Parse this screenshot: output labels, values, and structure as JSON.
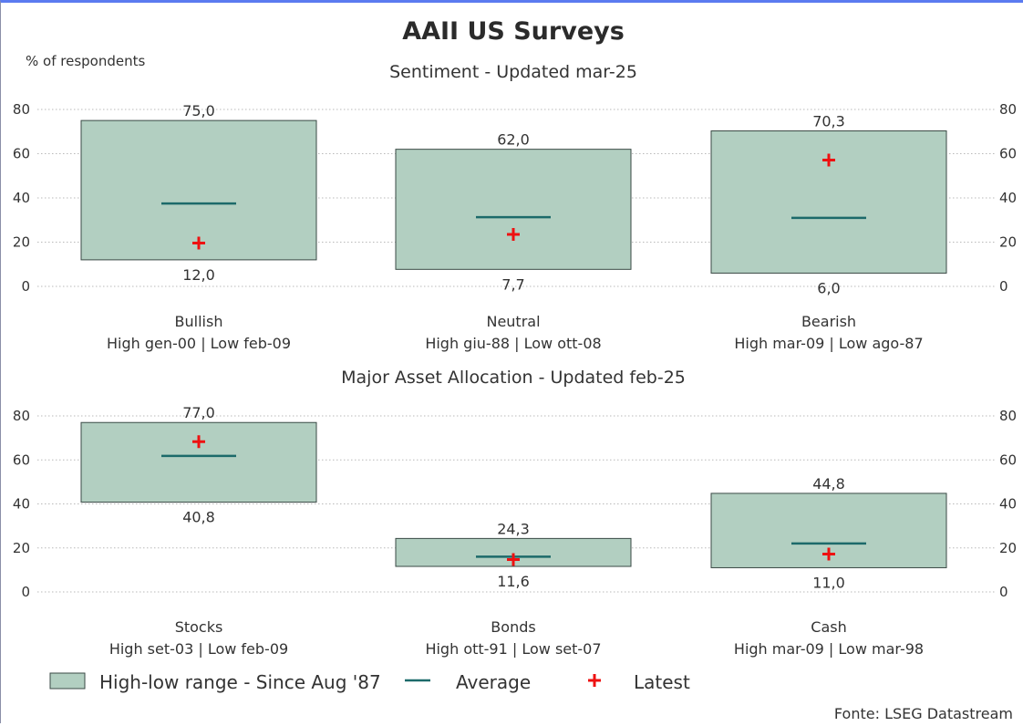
{
  "title": "AAII US Surveys",
  "source": "Fonte: LSEG Datastream",
  "legend": {
    "range": "High-low range - Since Aug '87",
    "average": "Average",
    "latest": "Latest"
  },
  "colors": {
    "box_fill": "#b2cfc1",
    "box_stroke": "#3a4a45",
    "average": "#1c6a6a",
    "latest": "#ee1111",
    "grid": "#b9b9b9"
  },
  "chart_data": [
    {
      "type": "range-box",
      "title": "Sentiment - Updated mar-25",
      "ylabel": "% of respondents",
      "ylim": [
        0,
        80
      ],
      "yticks": [
        "0",
        "20",
        "40",
        "60",
        "80"
      ],
      "grid": true,
      "categories": [
        {
          "name": "Bullish",
          "period": "High gen-00 | Low feb-09",
          "high": 75.0,
          "low": 12.0,
          "high_label": "75,0",
          "low_label": "12,0",
          "average": 37.5,
          "latest": 19.6
        },
        {
          "name": "Neutral",
          "period": "High giu-88 | Low ott-08",
          "high": 62.0,
          "low": 7.7,
          "high_label": "62,0",
          "low_label": "7,7",
          "average": 31.3,
          "latest": 23.5
        },
        {
          "name": "Bearish",
          "period": "High mar-09 | Low ago-87",
          "high": 70.3,
          "low": 6.0,
          "high_label": "70,3",
          "low_label": "6,0",
          "average": 31.0,
          "latest": 57.1
        }
      ]
    },
    {
      "type": "range-box",
      "title": "Major Asset Allocation - Updated feb-25",
      "ylim": [
        0,
        80
      ],
      "yticks": [
        "0",
        "20",
        "40",
        "60",
        "80"
      ],
      "grid": true,
      "categories": [
        {
          "name": "Stocks",
          "period": "High set-03 | Low feb-09",
          "high": 77.0,
          "low": 40.8,
          "high_label": "77,0",
          "low_label": "40,8",
          "average": 61.8,
          "latest": 68.3
        },
        {
          "name": "Bonds",
          "period": "High ott-91 | Low set-07",
          "high": 24.3,
          "low": 11.6,
          "high_label": "24,3",
          "low_label": "11,6",
          "average": 16.0,
          "latest": 14.7
        },
        {
          "name": "Cash",
          "period": "High mar-09 | Low mar-98",
          "high": 44.8,
          "low": 11.0,
          "high_label": "44,8",
          "low_label": "11,0",
          "average": 22.0,
          "latest": 17.2
        }
      ]
    }
  ]
}
